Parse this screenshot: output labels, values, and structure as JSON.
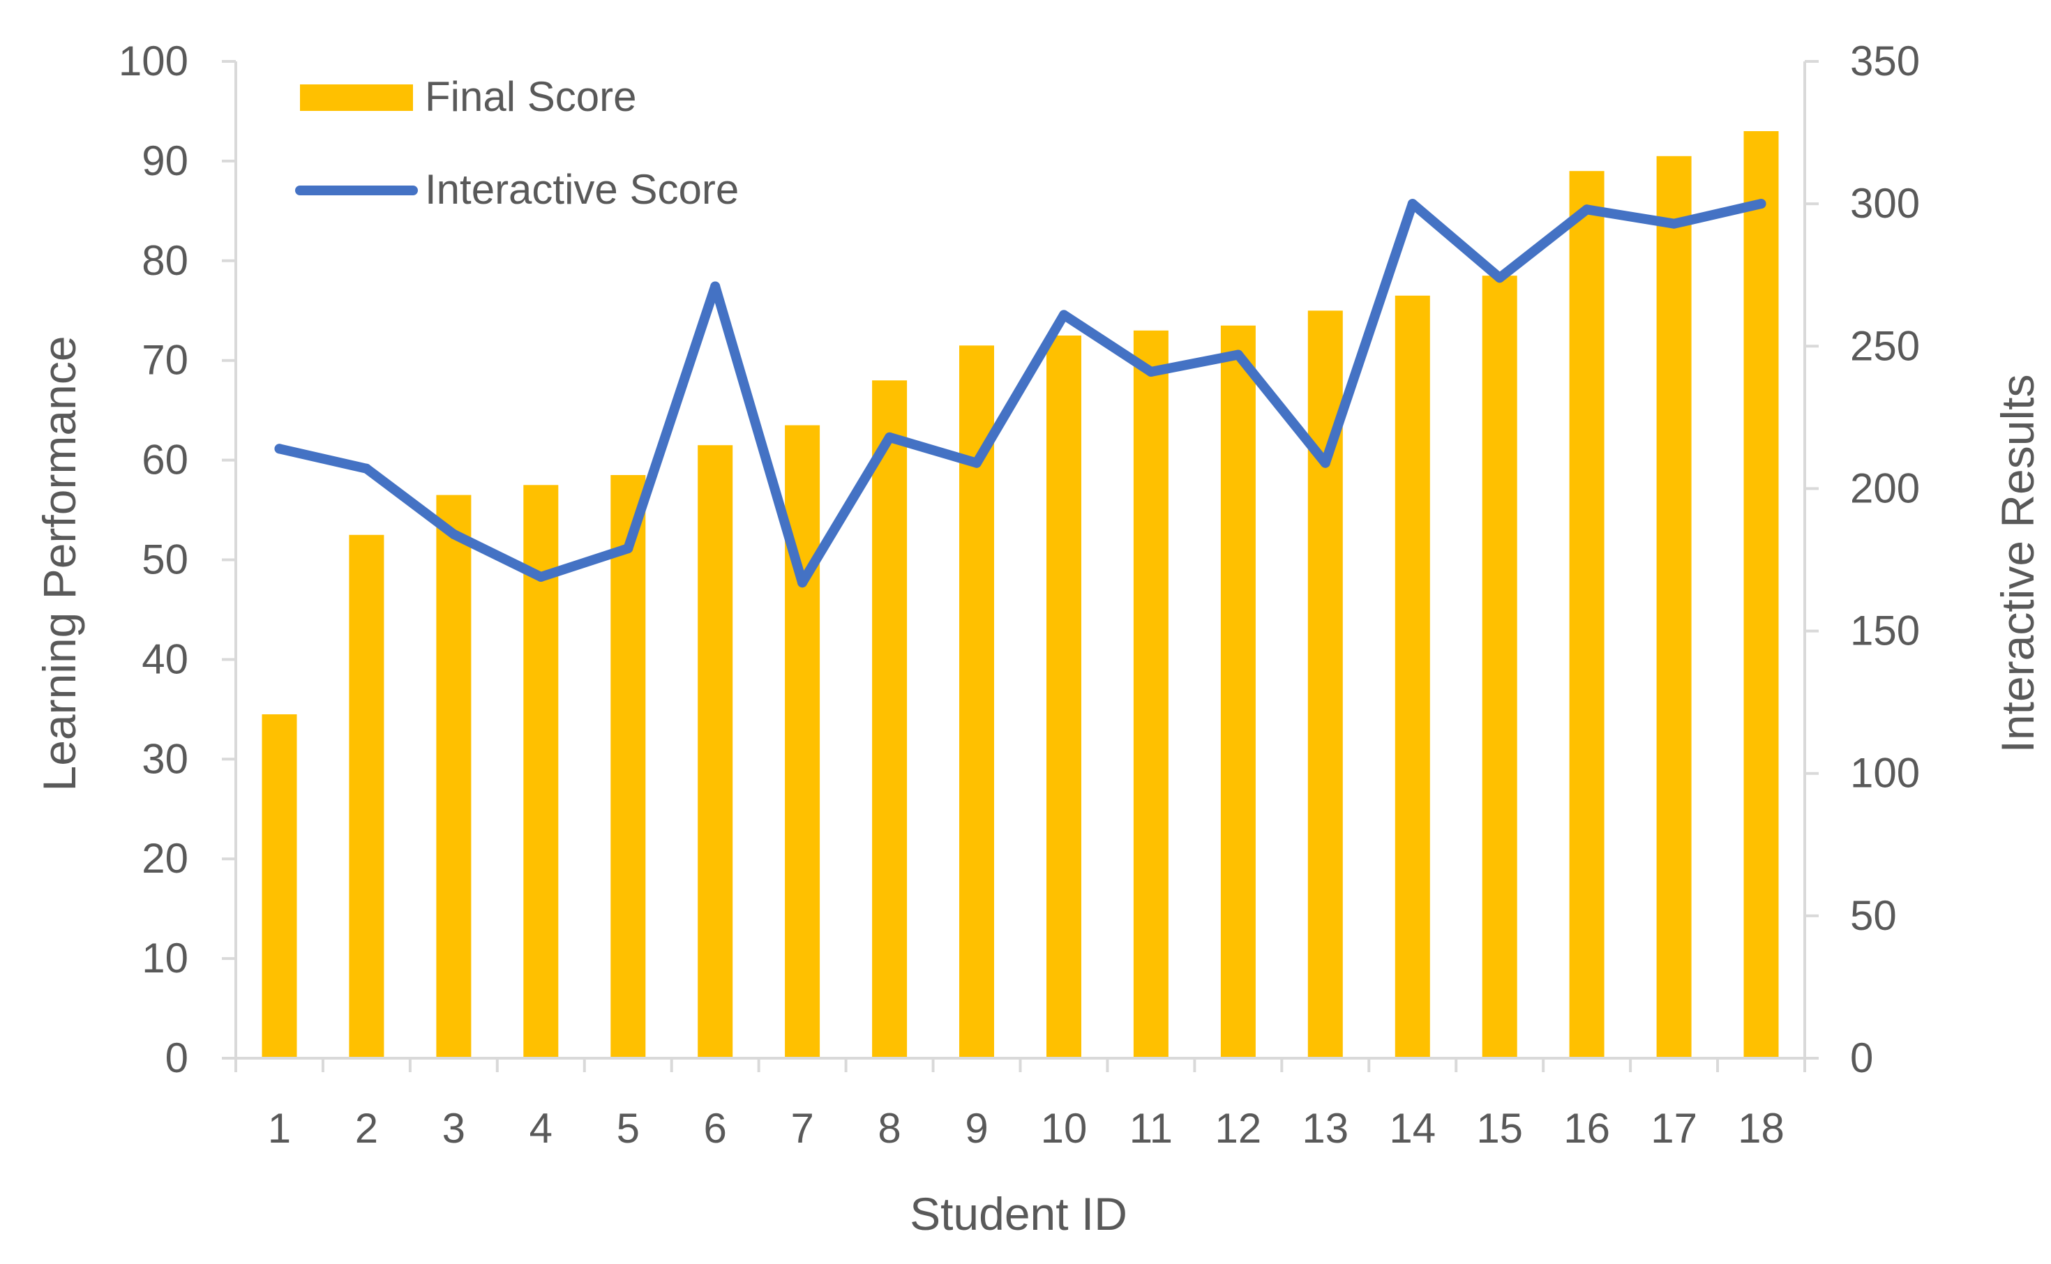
{
  "chart_data": {
    "type": "bar",
    "categories": [
      "1",
      "2",
      "3",
      "4",
      "5",
      "6",
      "7",
      "8",
      "9",
      "10",
      "11",
      "12",
      "13",
      "14",
      "15",
      "16",
      "17",
      "18"
    ],
    "series": [
      {
        "name": "Final Score",
        "type": "bar",
        "axis": "left",
        "color": "#FFC000",
        "values": [
          34.5,
          52.5,
          56.5,
          57.5,
          58.5,
          61.5,
          63.5,
          68,
          71.5,
          72.5,
          73,
          73.5,
          75,
          76.5,
          78.5,
          89,
          90.5,
          93
        ]
      },
      {
        "name": "Interactive Score",
        "type": "line",
        "axis": "right",
        "color": "#4472C4",
        "values": [
          214,
          207,
          184,
          169,
          179,
          271,
          167,
          218,
          209,
          261,
          241,
          247,
          209,
          300,
          274,
          298,
          293,
          300
        ]
      }
    ],
    "xlabel": "Student ID",
    "ylabel": "Learning Performance",
    "y2label": "Interactive Results",
    "ylim": [
      0,
      100
    ],
    "y2lim": [
      0,
      350
    ],
    "yticks": [
      0,
      10,
      20,
      30,
      40,
      50,
      60,
      70,
      80,
      90,
      100
    ],
    "y2ticks": [
      0,
      50,
      100,
      150,
      200,
      250,
      300,
      350
    ],
    "legend_position": "top-left",
    "grid": false,
    "axis_color": "#D9D9D9",
    "text_color": "#595959"
  }
}
